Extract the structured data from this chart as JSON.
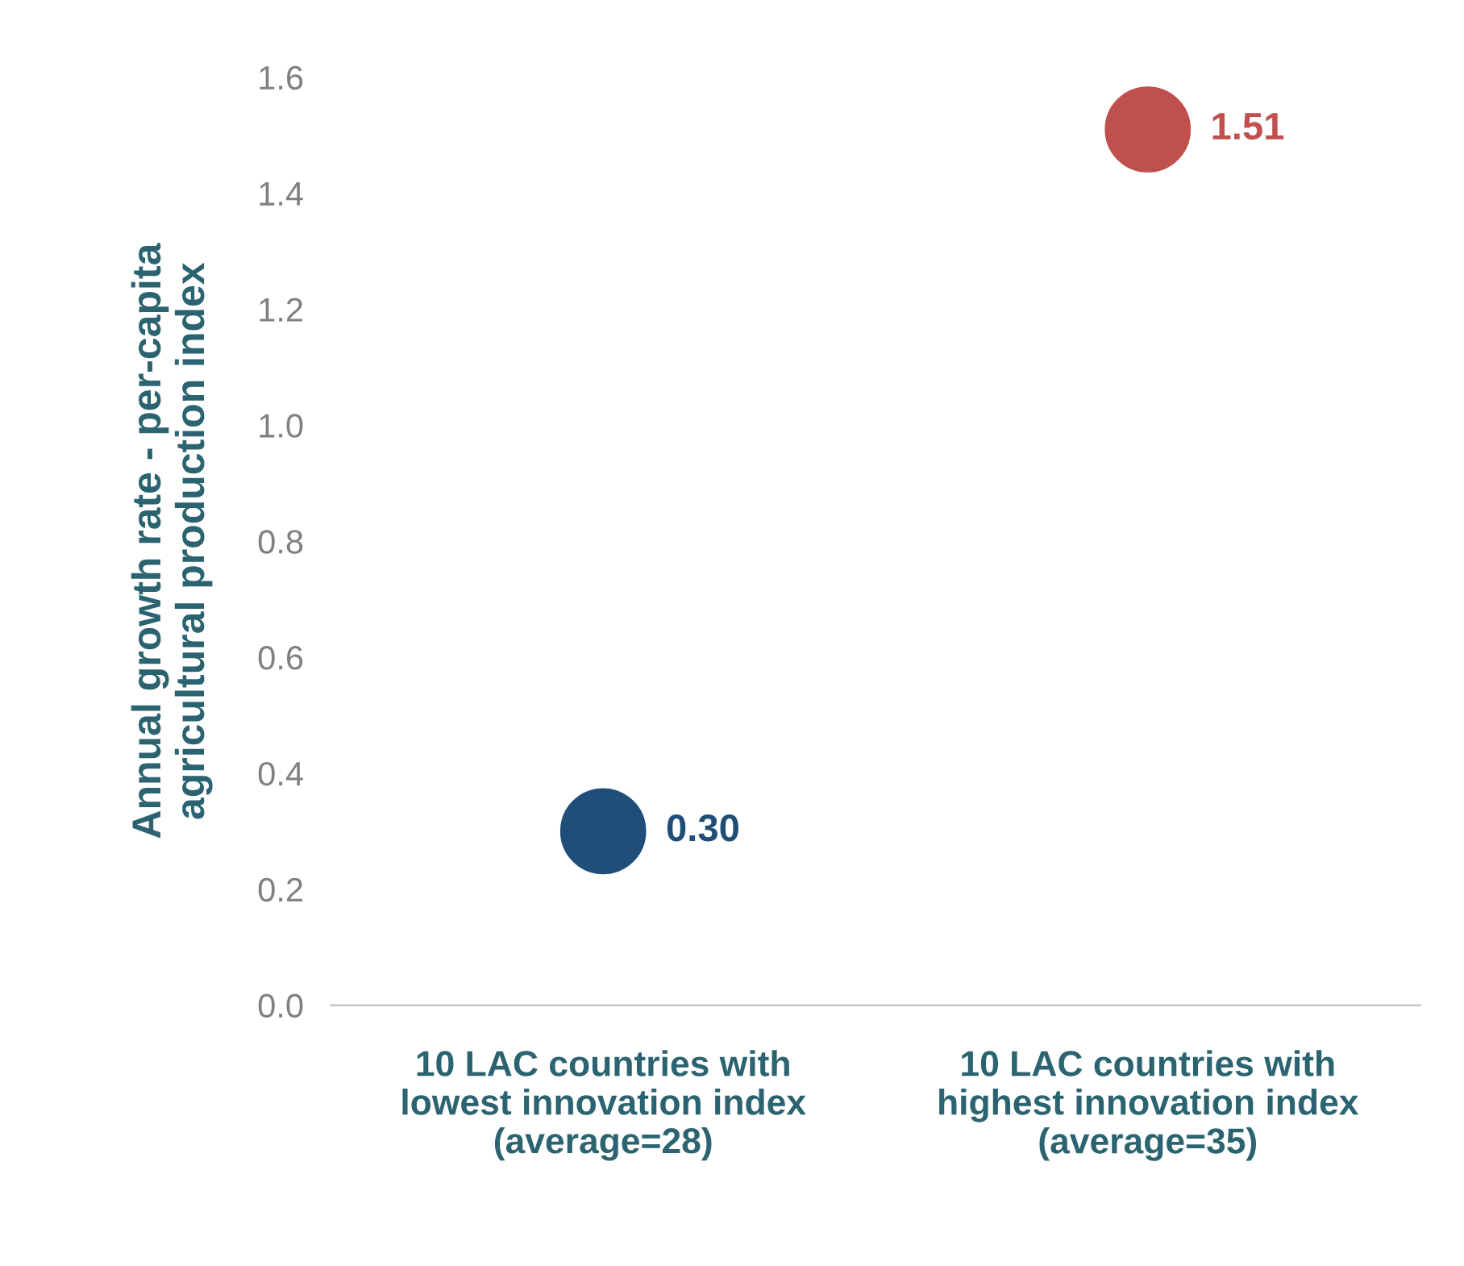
{
  "chart_data": {
    "type": "scatter",
    "ylabel": "Annual growth rate - per-capita\nagricultural production index",
    "categories": [
      "10 LAC countries with\nlowest innovation index\n(average=28)",
      "10 LAC countries with\nhighest innovation index\n(average=35)"
    ],
    "values": [
      0.3,
      1.51
    ],
    "colors": [
      "#1f4e79",
      "#c0504d"
    ],
    "value_labels": [
      "0.30",
      "1.51"
    ],
    "marker": "circle",
    "ylim": [
      0,
      1.6
    ],
    "yticks": [
      {
        "value": 0,
        "label": "0.0"
      },
      0.2,
      0.4,
      0.6,
      0.8,
      {
        "value": 1,
        "label": "1.0"
      },
      1.2,
      1.4,
      1.6
    ],
    "grid": false,
    "legend": false
  }
}
